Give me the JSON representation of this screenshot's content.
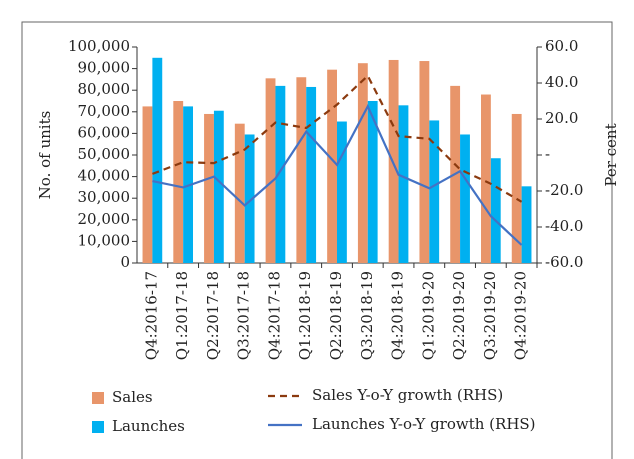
{
  "chart_data": {
    "type": "bar_line",
    "ylabel": "No. of units",
    "y2label": "Per cent",
    "categories": [
      "Q4:2016-17",
      "Q1:2017-18",
      "Q2:2017-18",
      "Q3:2017-18",
      "Q4:2017-18",
      "Q1:2018-19",
      "Q2:2018-19",
      "Q3:2018-19",
      "Q4:2018-19",
      "Q1:2019-20",
      "Q2:2019-20",
      "Q3:2019-20",
      "Q4:2019-20"
    ],
    "series": [
      {
        "name": "Sales",
        "kind": "bar",
        "color": "#E8956A",
        "values": [
          72500,
          75000,
          69000,
          64500,
          85500,
          86000,
          89500,
          92500,
          94000,
          93500,
          82000,
          78000,
          69000
        ]
      },
      {
        "name": "Launches",
        "kind": "bar",
        "color": "#00B0F0",
        "values": [
          95000,
          72500,
          70500,
          59500,
          82000,
          81500,
          65500,
          75000,
          73000,
          66000,
          59500,
          48500,
          35500
        ]
      },
      {
        "name": "Sales Y-o-Y growth (RHS)",
        "kind": "line",
        "dashed": true,
        "axis": "y2",
        "color": "#8B3A0F",
        "values": [
          -10.5,
          -4,
          -4.5,
          3,
          18,
          15,
          28,
          44,
          10.5,
          9,
          -8,
          -16,
          -26
        ]
      },
      {
        "name": "Launches Y-o-Y growth (RHS)",
        "kind": "line",
        "dashed": false,
        "axis": "y2",
        "color": "#4472C4",
        "values": [
          -14.5,
          -18,
          -12,
          -28,
          -13,
          13,
          -5.5,
          27,
          -11,
          -18.5,
          -9,
          -34,
          -50
        ]
      }
    ],
    "ylim": [
      0,
      100000
    ],
    "yticks": [
      0,
      {
        "value": 10000,
        "label": "10,000"
      },
      {
        "value": 20000,
        "label": "20,000"
      },
      {
        "value": 30000,
        "label": "30,000"
      },
      {
        "value": 40000,
        "label": "40,000"
      },
      {
        "value": 50000,
        "label": "50,000"
      },
      {
        "value": 60000,
        "label": "60,000"
      },
      {
        "value": 70000,
        "label": "70,000"
      },
      {
        "value": 80000,
        "label": "80,000"
      },
      {
        "value": 90000,
        "label": "90,000"
      },
      {
        "value": 100000,
        "label": "100,000"
      }
    ],
    "y2lim": [
      -60,
      60
    ],
    "y2ticks": [
      {
        "value": -60,
        "label": "-60.0"
      },
      {
        "value": -40,
        "label": "-40.0"
      },
      {
        "value": -20,
        "label": "-20.0"
      },
      {
        "value": 0,
        "label": "-"
      },
      {
        "value": 20,
        "label": "20.0"
      },
      {
        "value": 40,
        "label": "40.0"
      },
      {
        "value": 60,
        "label": "60.0"
      }
    ],
    "grid": false
  }
}
